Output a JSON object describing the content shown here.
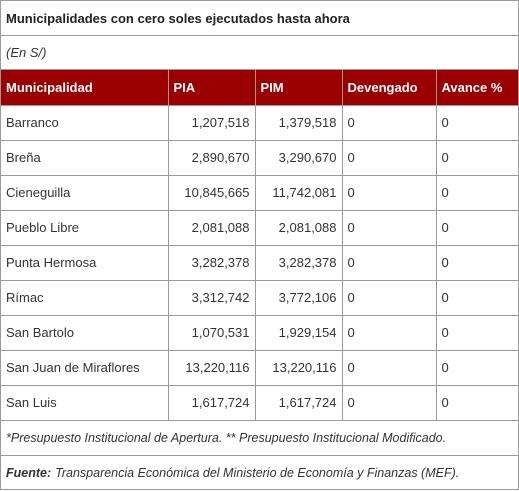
{
  "title": "Municipalidades con cero soles ejecutados hasta ahora",
  "units": "(En S/)",
  "table": {
    "headers": [
      "Municipalidad",
      "PIA",
      "PIM",
      "Devengado",
      "Avance %"
    ],
    "rows": [
      [
        "Barranco",
        "1,207,518",
        "1,379,518",
        "0",
        "0"
      ],
      [
        "Breña",
        "2,890,670",
        "3,290,670",
        "0",
        "0"
      ],
      [
        "Cieneguilla",
        "10,845,665",
        "11,742,081",
        "0",
        "0"
      ],
      [
        "Pueblo Libre",
        "2,081,088",
        "2,081,088",
        "0",
        "0"
      ],
      [
        "Punta Hermosa",
        "3,282,378",
        "3,282,378",
        "0",
        "0"
      ],
      [
        "Rímac",
        "3,312,742",
        "3,772,106",
        "0",
        "0"
      ],
      [
        "San Bartolo",
        "1,070,531",
        "1,929,154",
        "0",
        "0"
      ],
      [
        "San Juan de Miraflores",
        "13,220,116",
        "13,220,116",
        "0",
        "0"
      ],
      [
        "San Luis",
        "1,617,724",
        "1,617,724",
        "0",
        "0"
      ]
    ]
  },
  "note": "*Presupuesto Institucional de Apertura. ** Presupuesto Institucional Modificado.",
  "source": {
    "label": "Fuente:",
    "text": "Transparencia Económica del Ministerio de Economía y Finanzas (MEF)."
  },
  "colors": {
    "header_background": "#9b0000",
    "header_text": "#ffffff",
    "border": "#9a9a9a"
  }
}
